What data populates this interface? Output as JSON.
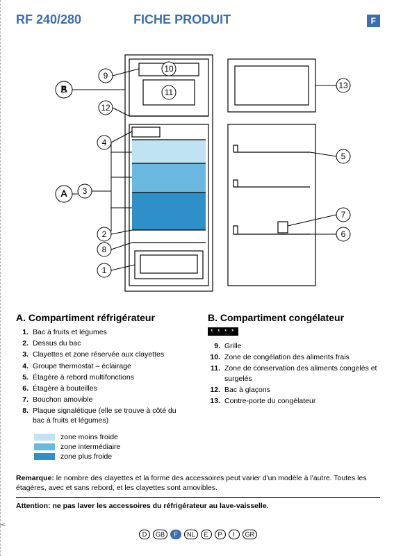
{
  "header": {
    "model": "RF 240/280",
    "title": "FICHE PRODUIT",
    "lang_badge": "F",
    "brand_color": "#3b6db0"
  },
  "diagram": {
    "callouts": {
      "A": "A",
      "B": "B",
      "n1": "1",
      "n2": "2",
      "n3": "3",
      "n4": "4",
      "n5": "5",
      "n6": "6",
      "n7": "7",
      "n8": "8",
      "n9": "9",
      "n10": "10",
      "n11": "11",
      "n12": "12",
      "n13": "13"
    },
    "colors": {
      "zone_light": "#bfe3f2",
      "zone_mid": "#6ab8e0",
      "zone_dark": "#2f8fc9",
      "stroke": "#000000",
      "panel_fill": "#ffffff"
    }
  },
  "sections": {
    "A": {
      "heading": "A.  Compartiment réfrigérateur",
      "items": [
        {
          "n": "1.",
          "t": "Bac à fruits et légumes"
        },
        {
          "n": "2.",
          "t": "Dessus du bac"
        },
        {
          "n": "3.",
          "t": "Clayettes et zone réservée aux clayettes"
        },
        {
          "n": "4.",
          "t": "Groupe thermostat – éclairage"
        },
        {
          "n": "5.",
          "t": "Étagère à rebord multifonctions"
        },
        {
          "n": "6.",
          "t": "Étagère à bouteilles"
        },
        {
          "n": "7.",
          "t": "Bouchon amovible"
        },
        {
          "n": "8.",
          "t": "Plaque signalétique (elle se trouve à côté du bac à fruits et légumes)"
        }
      ]
    },
    "B": {
      "heading": "B.  Compartiment congélateur",
      "star_label": "* * * *",
      "items": [
        {
          "n": "9.",
          "t": "Grille"
        },
        {
          "n": "10.",
          "t": "Zone de congélation des aliments frais"
        },
        {
          "n": "11.",
          "t": "Zone de conservation des aliments congelés et surgelés"
        },
        {
          "n": "12.",
          "t": "Bac à glaçons"
        },
        {
          "n": "13.",
          "t": "Contre-porte du congélateur"
        }
      ]
    }
  },
  "legend": [
    {
      "color": "#bfe3f2",
      "label": "zone moins froide"
    },
    {
      "color": "#6ab8e0",
      "label": "zone intermédiaire"
    },
    {
      "color": "#2f8fc9",
      "label": "zone plus froide"
    }
  ],
  "remark": {
    "label": "Remarque:",
    "text": "le nombre des clayettes et la forme des accessoires peut varier d'un modèle à l'autre. Toutes les étagères, avec et sans rebord, et les clayettes sont amovibles."
  },
  "attention": "Attention: ne pas laver les accessoires du réfrigérateur au lave-vaisselle.",
  "footer_langs": [
    "D",
    "GB",
    "F",
    "NL",
    "E",
    "P",
    "I",
    "GR"
  ],
  "footer_active": "F"
}
